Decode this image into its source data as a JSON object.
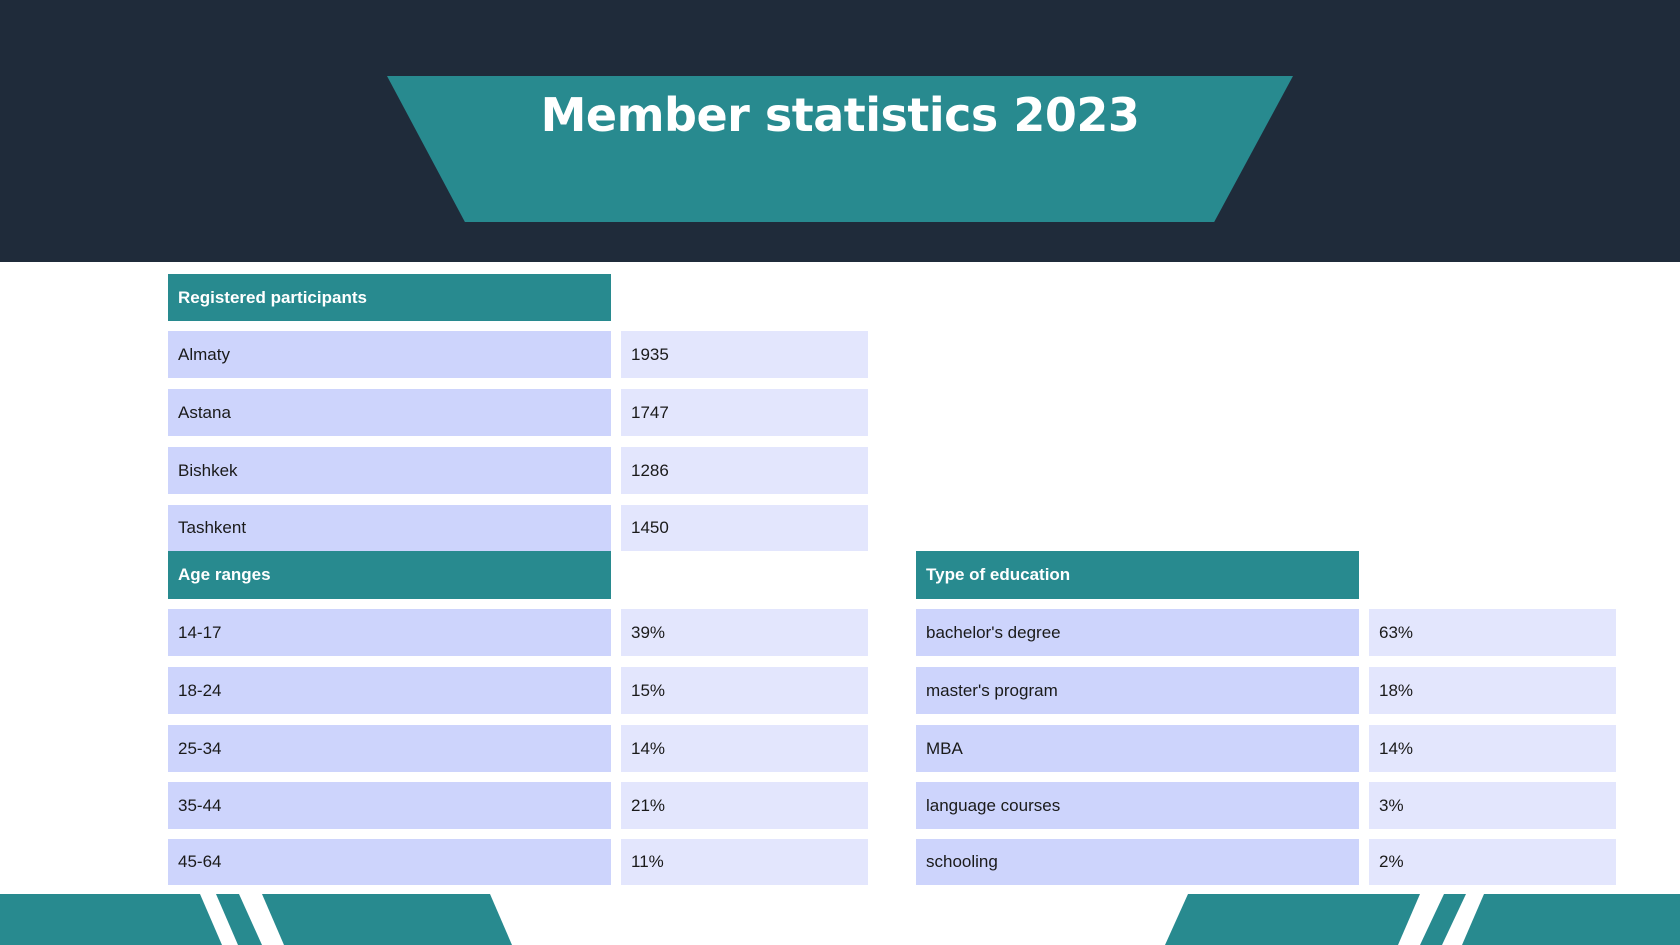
{
  "title": "Member statistics 2023",
  "colors": {
    "header_bg": "#1f2b3a",
    "accent": "#288a8f",
    "label_cell": "#cdd4fc",
    "value_cell": "#e3e6fd"
  },
  "registered": {
    "heading": "Registered participants",
    "rows": [
      {
        "label": "Almaty",
        "value": "1935"
      },
      {
        "label": "Astana",
        "value": "1747"
      },
      {
        "label": "Bishkek",
        "value": "1286"
      },
      {
        "label": "Tashkent",
        "value": "1450"
      }
    ]
  },
  "age": {
    "heading": "Age ranges",
    "rows": [
      {
        "label": "14-17",
        "value": "39%"
      },
      {
        "label": "18-24",
        "value": "15%"
      },
      {
        "label": "25-34",
        "value": "14%"
      },
      {
        "label": "35-44",
        "value": "21%"
      },
      {
        "label": "45-64",
        "value": "11%"
      }
    ]
  },
  "education": {
    "heading": "Type of education",
    "rows": [
      {
        "label": "bachelor's degree",
        "value": "63%"
      },
      {
        "label": "master's program",
        "value": "18%"
      },
      {
        "label": "MBA",
        "value": "14%"
      },
      {
        "label": "language courses",
        "value": "3%"
      },
      {
        "label": "schooling",
        "value": "2%"
      }
    ]
  }
}
